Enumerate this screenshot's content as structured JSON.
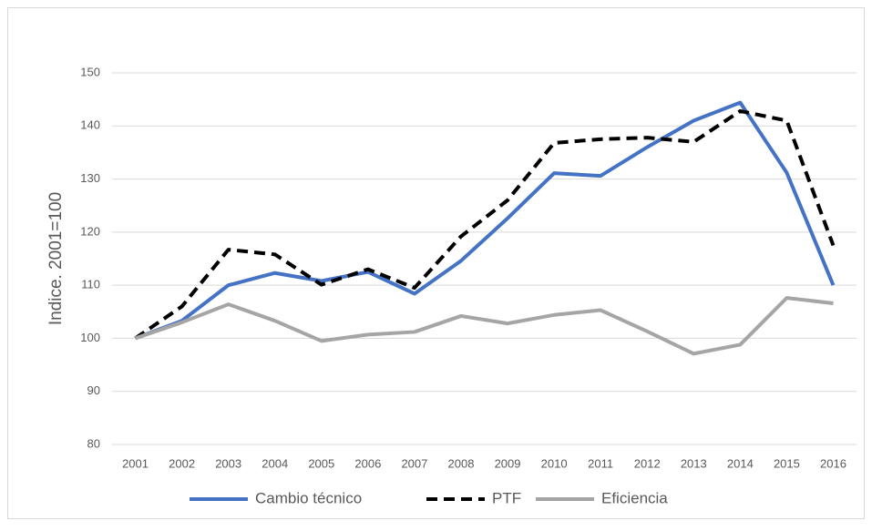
{
  "chart_data": {
    "type": "line",
    "y_label": "Indice. 2001=100",
    "categories": [
      "2001",
      "2002",
      "2003",
      "2004",
      "2005",
      "2006",
      "2007",
      "2008",
      "2009",
      "2010",
      "2011",
      "2012",
      "2013",
      "2014",
      "2015",
      "2016"
    ],
    "series": [
      {
        "name": "Cambio técnico",
        "color": "#4472c4",
        "dash": false,
        "values": [
          100,
          103.3,
          110,
          112.3,
          110.8,
          112.5,
          108.4,
          114.6,
          122.6,
          131.1,
          130.6,
          136,
          141,
          144.4,
          131.2,
          110
        ]
      },
      {
        "name": "PTF",
        "color": "#000000",
        "dash": true,
        "values": [
          100,
          106,
          116.7,
          115.8,
          110.1,
          113,
          109.5,
          119.2,
          126,
          136.8,
          137.5,
          137.8,
          137,
          142.8,
          141,
          117.5
        ]
      },
      {
        "name": "Eficiencia",
        "color": "#a5a5a5",
        "dash": false,
        "values": [
          100,
          103,
          106.4,
          103.3,
          99.5,
          100.7,
          101.2,
          104.2,
          102.8,
          104.4,
          105.3,
          101.3,
          97.1,
          98.8,
          107.6,
          106.6
        ]
      }
    ],
    "ylim": [
      80,
      150
    ],
    "yticks": [
      80,
      90,
      100,
      110,
      120,
      130,
      140,
      150
    ],
    "grid": true,
    "legend": "bottom"
  }
}
